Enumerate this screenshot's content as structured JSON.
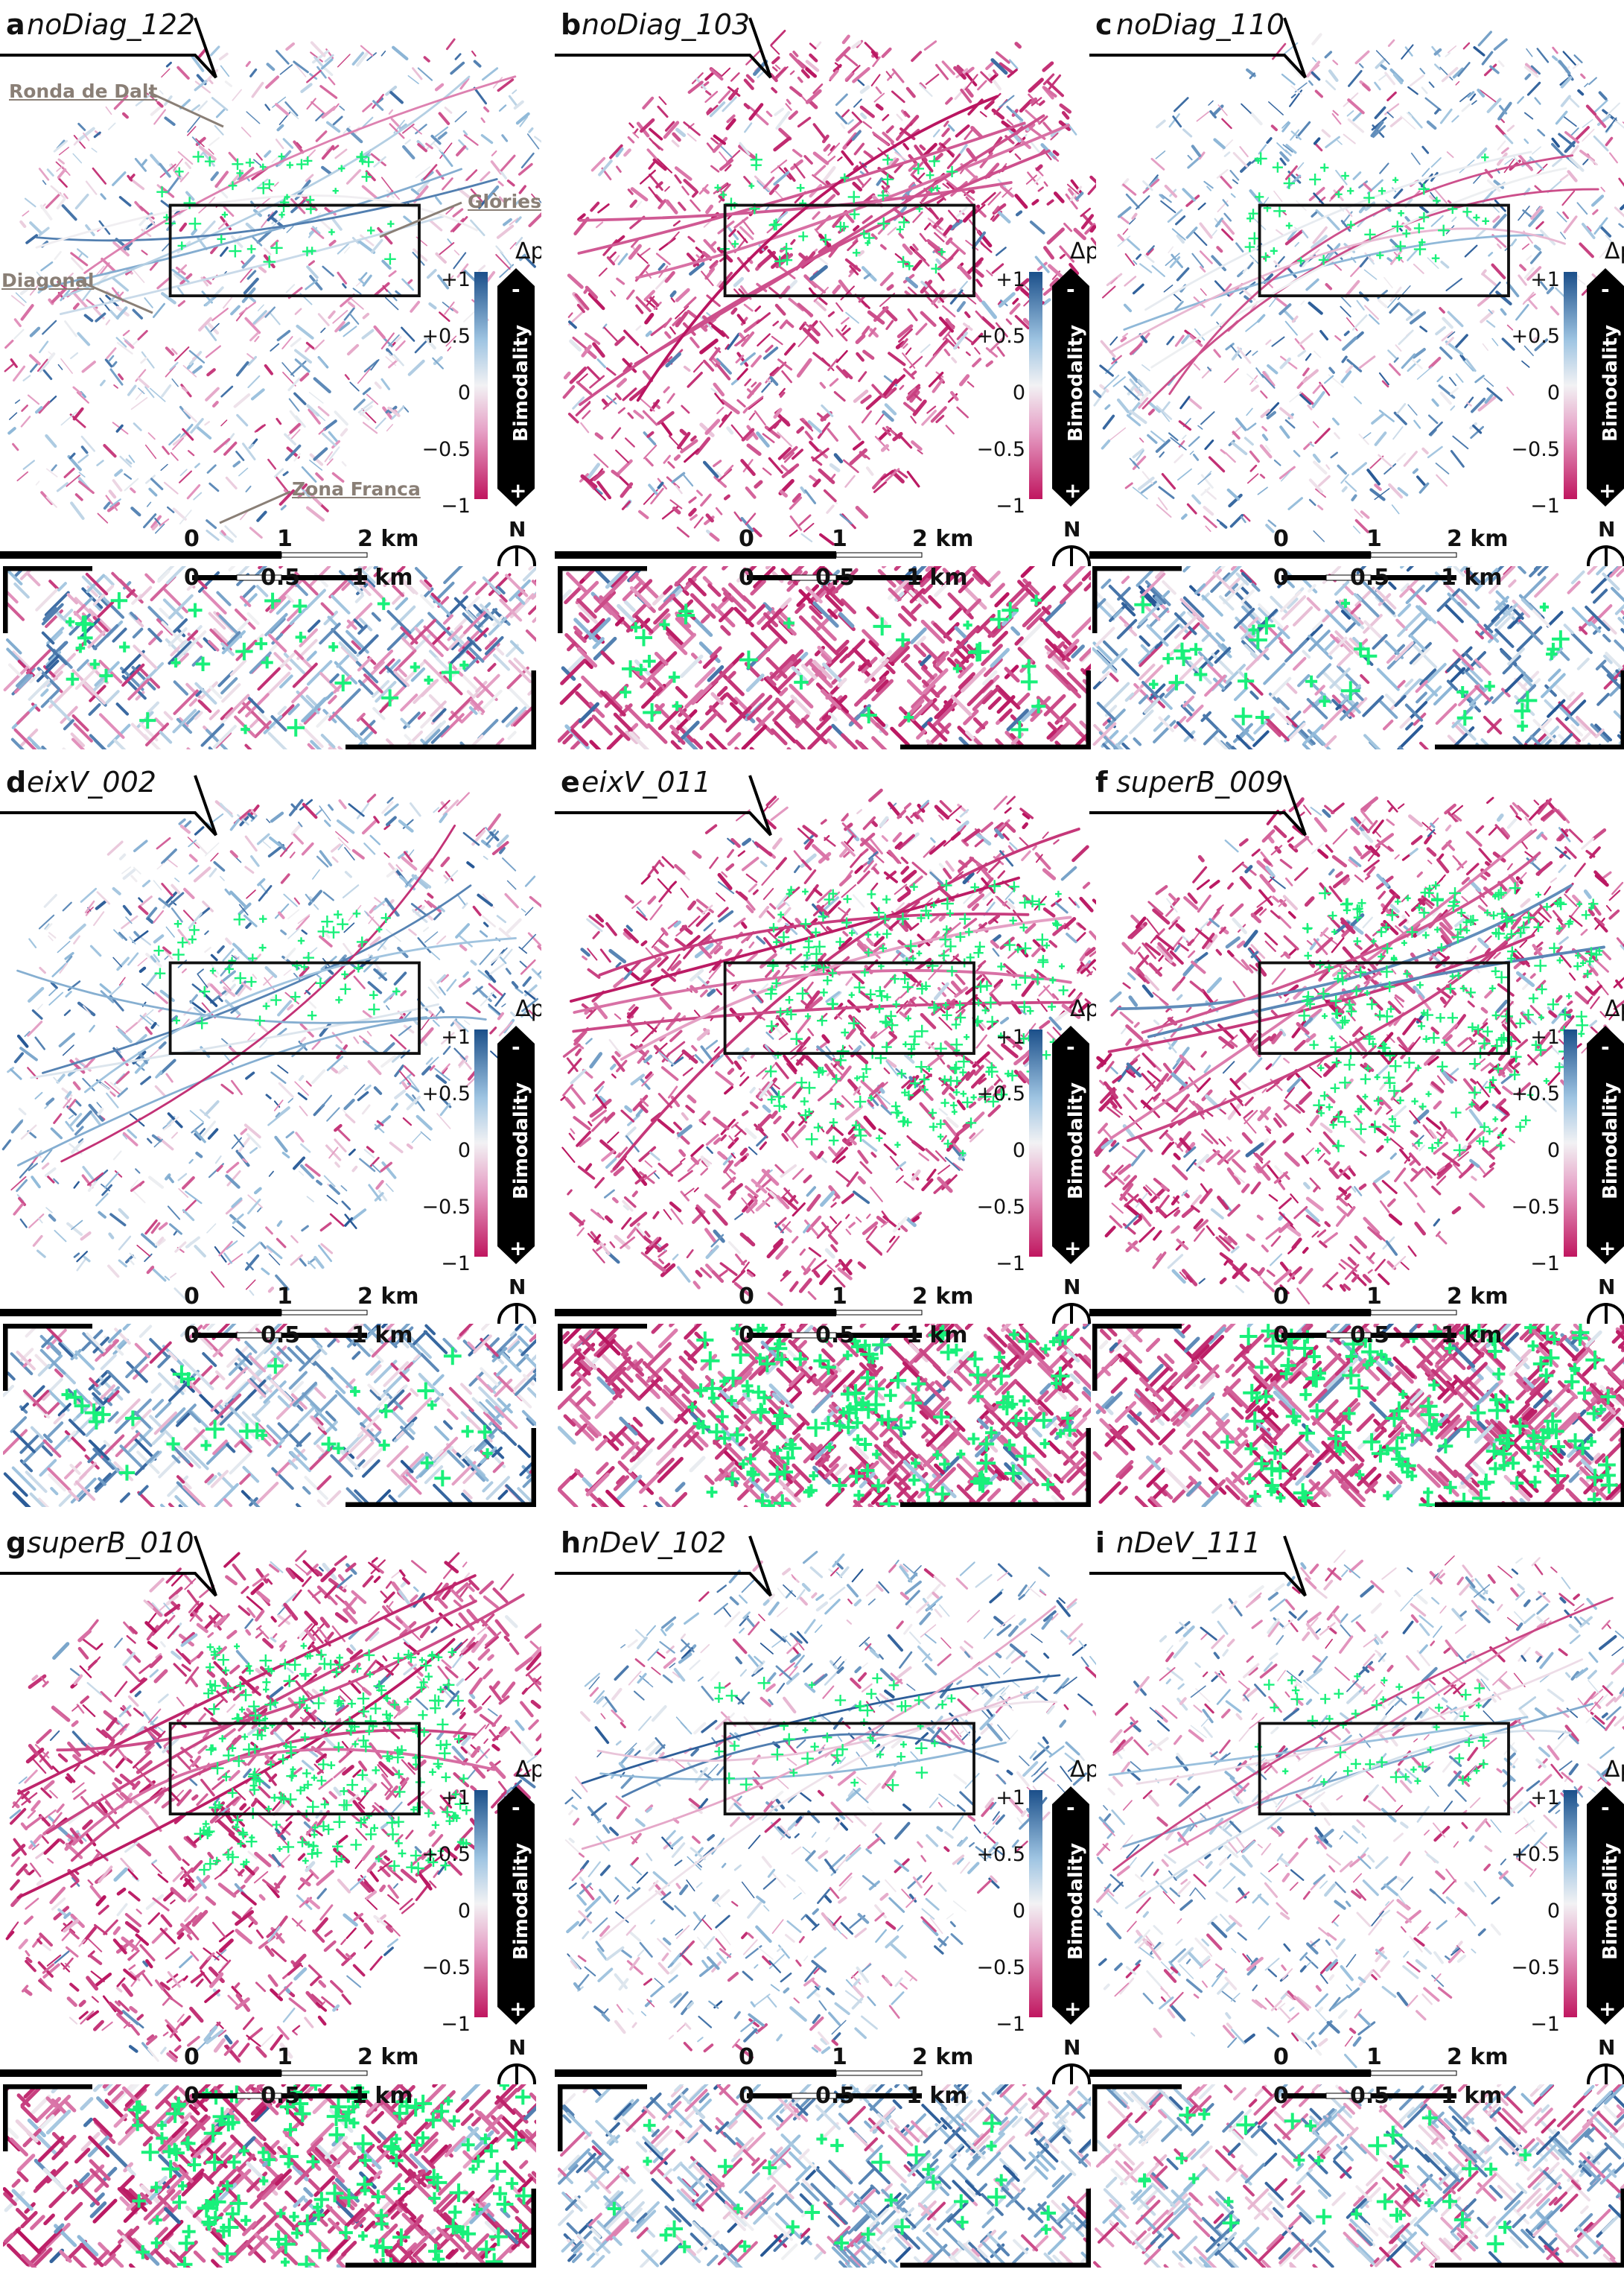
{
  "panels": [
    {
      "letter": "a",
      "name": "noDiag_122",
      "mode": "mixed"
    },
    {
      "letter": "b",
      "name": "noDiag_103",
      "mode": "magenta"
    },
    {
      "letter": "c",
      "name": "noDiag_110",
      "mode": "blueish"
    },
    {
      "letter": "d",
      "name": "eixV_002",
      "mode": "blueish"
    },
    {
      "letter": "e",
      "name": "eixV_011",
      "mode": "magenta"
    },
    {
      "letter": "f",
      "name": "superB_009",
      "mode": "magenta"
    },
    {
      "letter": "g",
      "name": "superB_010",
      "mode": "magenta"
    },
    {
      "letter": "h",
      "name": "nDeV_102",
      "mode": "blueish"
    },
    {
      "letter": "i",
      "name": "nDeV_111",
      "mode": "mixed"
    }
  ],
  "legend": {
    "title": "Δp",
    "ticks": [
      "+1",
      "+0.5",
      "0",
      "−0.5",
      "−1"
    ],
    "bar_label": "Bimodality",
    "minus_sign": "-",
    "plus_sign": "+"
  },
  "scale": {
    "main": [
      "0",
      "1",
      "2 km"
    ],
    "inset": [
      "0",
      "0.5",
      "1 km"
    ],
    "north": "N"
  },
  "annotations": {
    "ronda": "Ronda de Dalt",
    "glories": "Glòries",
    "diagonal": "Diagonal",
    "zona": "Zona Franca"
  },
  "colors": {
    "blue": "#1b4f8a",
    "magenta": "#c0165f",
    "highlight": "#19f07a",
    "frame": "#111111"
  }
}
